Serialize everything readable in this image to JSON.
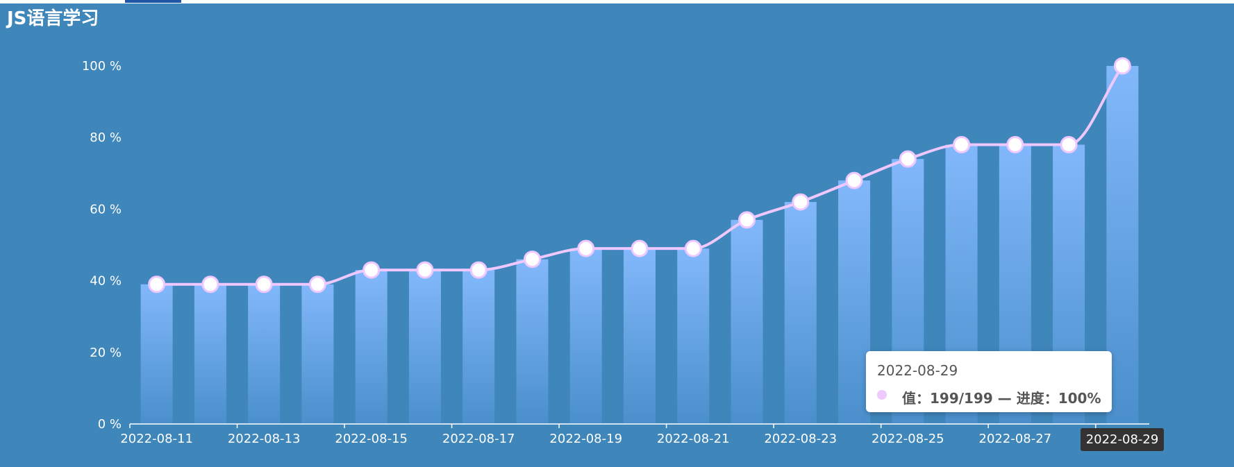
{
  "title": "JS语言学习",
  "chart_data": {
    "type": "bar",
    "overlay_type": "line",
    "smooth": true,
    "categories": [
      "2022-08-11",
      "2022-08-12",
      "2022-08-13",
      "2022-08-14",
      "2022-08-15",
      "2022-08-16",
      "2022-08-17",
      "2022-08-18",
      "2022-08-19",
      "2022-08-20",
      "2022-08-21",
      "2022-08-22",
      "2022-08-23",
      "2022-08-24",
      "2022-08-25",
      "2022-08-26",
      "2022-08-27",
      "2022-08-28",
      "2022-08-29"
    ],
    "values": [
      39,
      39,
      39,
      39,
      43,
      43,
      43,
      46,
      49,
      49,
      49,
      57,
      62,
      68,
      74,
      78,
      78,
      78,
      100
    ],
    "x_tick_labels": [
      "2022-08-11",
      "2022-08-13",
      "2022-08-15",
      "2022-08-17",
      "2022-08-19",
      "2022-08-21",
      "2022-08-23",
      "2022-08-25",
      "2022-08-27",
      "2022-08-29"
    ],
    "y_ticks": [
      "0 %",
      "20 %",
      "40 %",
      "60 %",
      "80 %",
      "100 %"
    ],
    "y_tick_values": [
      0,
      20,
      40,
      60,
      80,
      100
    ],
    "ylim": [
      0,
      100
    ],
    "grid": false,
    "colors": {
      "background": "#3f86bb",
      "bar_top": "#82b8fb",
      "bar_bottom": "#4a8fcc",
      "line": "#efc8ff",
      "marker_fill": "#ffffff"
    }
  },
  "tooltip": {
    "date": "2022-08-29",
    "text": "值：199/199 — 进度：100%"
  },
  "axis_pointer_label": "2022-08-29"
}
